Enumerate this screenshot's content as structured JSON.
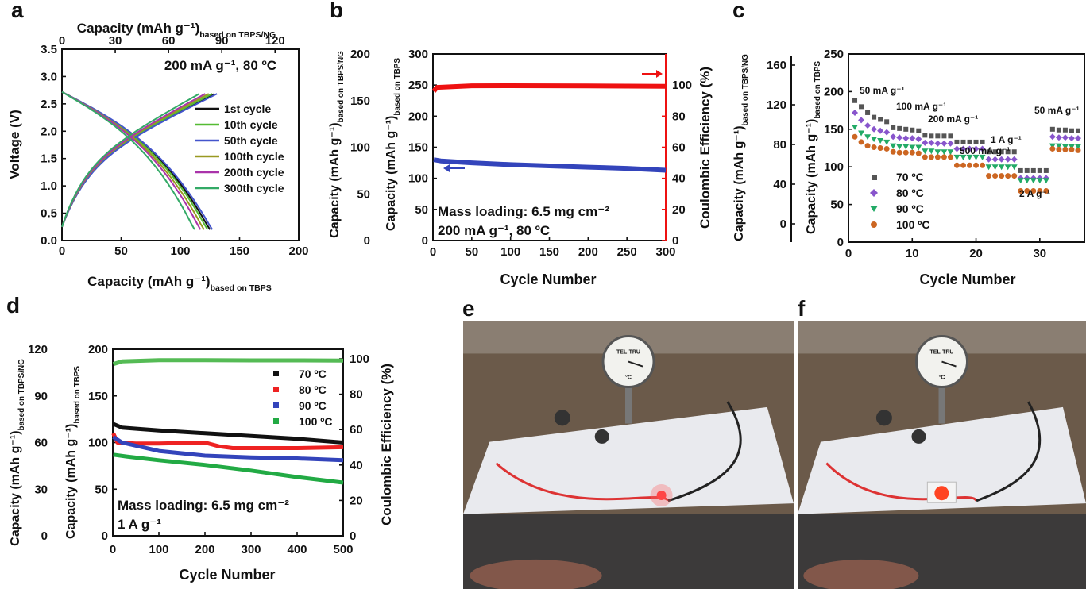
{
  "panels": {
    "a": {
      "letter": "a"
    },
    "b": {
      "letter": "b"
    },
    "c": {
      "letter": "c"
    },
    "d": {
      "letter": "d"
    },
    "e": {
      "letter": "e"
    },
    "f": {
      "letter": "f"
    }
  },
  "chart_data": [
    {
      "id": "a",
      "type": "line",
      "annotation": "200 mA g⁻¹, 80 ºC",
      "xlabel": "Capacity (mAh g⁻¹)",
      "xlabel_sub": "based on TBPS",
      "x2label": "Capacity (mAh g⁻¹)",
      "x2label_sub": "based on TBPS/NG",
      "ylabel": "Voltage (V)",
      "xlim": [
        0,
        200
      ],
      "x2lim": [
        0,
        133.3
      ],
      "ylim": [
        0,
        3.5
      ],
      "xticks": [
        "0",
        "50",
        "100",
        "150",
        "200"
      ],
      "x2ticks": [
        "0",
        "30",
        "60",
        "90",
        "120"
      ],
      "yticks": [
        "0.0",
        "0.5",
        "1.0",
        "1.5",
        "2.0",
        "2.5",
        "3.0",
        "3.5"
      ],
      "legend_position": "center-right",
      "series": [
        {
          "name": "1st cycle",
          "color": "#111111",
          "discharge_end": 125,
          "charge_end": 129
        },
        {
          "name": "10th cycle",
          "color": "#55bb33",
          "discharge_end": 123,
          "charge_end": 127
        },
        {
          "name": "50th cycle",
          "color": "#4455cc",
          "discharge_end": 127,
          "charge_end": 131
        },
        {
          "name": "100th cycle",
          "color": "#999922",
          "discharge_end": 120,
          "charge_end": 124
        },
        {
          "name": "200th cycle",
          "color": "#aa33aa",
          "discharge_end": 117,
          "charge_end": 121
        },
        {
          "name": "300th cycle",
          "color": "#33aa66",
          "discharge_end": 112,
          "charge_end": 116
        }
      ]
    },
    {
      "id": "b",
      "type": "line",
      "xlabel": "Cycle Number",
      "ylabel": "Capacity (mAh g⁻¹)",
      "ylabel_sub": "based on TBPS",
      "ylabel_outer": "Capacity (mAh g⁻¹)",
      "ylabel_outer_sub": "based on TBPS/NG",
      "y2label": "Coulombic Efficiency (%)",
      "xlim": [
        0,
        300
      ],
      "ylim": [
        0,
        300
      ],
      "y2lim": [
        0,
        120
      ],
      "xticks": [
        "0",
        "50",
        "100",
        "150",
        "200",
        "250",
        "300"
      ],
      "yticks": [
        "0",
        "50",
        "100",
        "150",
        "200",
        "250",
        "300"
      ],
      "outer_yticks": [
        "0",
        "50",
        "100",
        "150",
        "200"
      ],
      "y2ticks": [
        "0",
        "20",
        "40",
        "60",
        "80",
        "100"
      ],
      "annotations": [
        "Mass loading: 6.5 mg cm⁻²",
        "200 mA g⁻¹, 80 ºC"
      ],
      "series": [
        {
          "name": "capacity",
          "axis": "left",
          "color": "#3344bb",
          "x": [
            1,
            10,
            50,
            100,
            150,
            200,
            250,
            300
          ],
          "y": [
            130,
            128,
            125,
            122,
            120,
            118,
            116,
            113
          ]
        },
        {
          "name": "coulombic_efficiency",
          "axis": "right",
          "color": "#ee1111",
          "x": [
            1,
            5,
            50,
            100,
            150,
            200,
            250,
            300
          ],
          "y": [
            96,
            98.5,
            99.5,
            99.6,
            99.5,
            99.4,
            99.3,
            99.2
          ]
        }
      ]
    },
    {
      "id": "c",
      "type": "scatter",
      "xlabel": "Cycle Number",
      "ylabel": "Capacity (mAh g⁻¹)",
      "ylabel_sub": "based on TBPS",
      "ylabel_outer": "Capacity (mAh g⁻¹)",
      "ylabel_outer_sub": "based on TBPS/NG",
      "xlim": [
        0,
        37
      ],
      "ylim": [
        0,
        250
      ],
      "xticks": [
        "0",
        "10",
        "20",
        "30"
      ],
      "yticks": [
        "0",
        "50",
        "100",
        "150",
        "200",
        "250"
      ],
      "outer_yticks": [
        "0",
        "40",
        "80",
        "120",
        "160"
      ],
      "rate_labels": [
        "50 mA g⁻¹",
        "100 mA g⁻¹",
        "200 mA g⁻¹",
        "500 mA g⁻¹",
        "1 A g⁻¹",
        "2 A g⁻¹",
        "50 mA g⁻¹"
      ],
      "legend_position": "bottom-left",
      "series": [
        {
          "name": "70 ºC",
          "color": "#555555",
          "marker": "square",
          "y": [
            188,
            180,
            172,
            166,
            163,
            160,
            152,
            151,
            150,
            149,
            148,
            142,
            141,
            141,
            141,
            141,
            133,
            133,
            133,
            133,
            133,
            120,
            120,
            120,
            120,
            120,
            95,
            95,
            95,
            95,
            95,
            150,
            149,
            149,
            148,
            148
          ]
        },
        {
          "name": "80 ºC",
          "color": "#8855cc",
          "marker": "diamond",
          "y": [
            172,
            162,
            155,
            150,
            148,
            146,
            140,
            139,
            138,
            138,
            137,
            132,
            132,
            131,
            131,
            131,
            124,
            124,
            124,
            124,
            124,
            110,
            110,
            110,
            110,
            110,
            85,
            85,
            85,
            85,
            85,
            140,
            139,
            139,
            138,
            138
          ]
        },
        {
          "name": "90 ºC",
          "color": "#22aa66",
          "marker": "triangle-down",
          "y": [
            153,
            145,
            140,
            137,
            135,
            133,
            128,
            127,
            127,
            126,
            126,
            121,
            121,
            120,
            120,
            120,
            113,
            113,
            113,
            113,
            113,
            100,
            100,
            100,
            100,
            100,
            82,
            82,
            82,
            82,
            82,
            128,
            128,
            127,
            127,
            127
          ]
        },
        {
          "name": "100 ºC",
          "color": "#cc6622",
          "marker": "circle",
          "y": [
            140,
            133,
            128,
            126,
            125,
            124,
            120,
            119,
            119,
            119,
            118,
            113,
            113,
            113,
            113,
            113,
            102,
            102,
            102,
            102,
            102,
            88,
            88,
            88,
            88,
            88,
            68,
            68,
            68,
            68,
            68,
            124,
            123,
            123,
            123,
            122
          ]
        }
      ]
    },
    {
      "id": "d",
      "type": "line",
      "xlabel": "Cycle Number",
      "ylabel": "Capacity (mAh g⁻¹)",
      "ylabel_sub": "based on TBPS",
      "ylabel_outer": "Capacity (mAh g⁻¹)",
      "ylabel_outer_sub": "based on TBPS/NG",
      "y2label": "Coulombic Efficiency (%)",
      "xlim": [
        0,
        500
      ],
      "ylim": [
        0,
        200
      ],
      "y2lim": [
        0,
        100
      ],
      "xticks": [
        "0",
        "100",
        "200",
        "300",
        "400",
        "500"
      ],
      "yticks": [
        "0",
        "50",
        "100",
        "150",
        "200"
      ],
      "outer_yticks": [
        "0",
        "30",
        "60",
        "90",
        "120"
      ],
      "y2ticks": [
        "0",
        "20",
        "40",
        "60",
        "80",
        "100"
      ],
      "annotations": [
        "Mass loading: 6.5 mg cm⁻²",
        "1 A g⁻¹"
      ],
      "legend_position": "top-right",
      "series": [
        {
          "name": "70 ºC",
          "color": "#111111",
          "x": [
            1,
            20,
            100,
            200,
            300,
            400,
            500
          ],
          "y": [
            120,
            116,
            113,
            110,
            107,
            104,
            100
          ]
        },
        {
          "name": "80 ºC",
          "color": "#ee2222",
          "x": [
            1,
            10,
            50,
            100,
            200,
            230,
            260,
            300,
            400,
            500
          ],
          "y": [
            110,
            100,
            99,
            99,
            100,
            96,
            94,
            94,
            94,
            95
          ]
        },
        {
          "name": "90 ºC",
          "color": "#3344bb",
          "x": [
            1,
            20,
            100,
            200,
            300,
            400,
            500
          ],
          "y": [
            106,
            100,
            91,
            86,
            84,
            83,
            81
          ]
        },
        {
          "name": "100 ºC",
          "color": "#22aa44",
          "x": [
            1,
            30,
            100,
            200,
            300,
            400,
            500
          ],
          "y": [
            87,
            85,
            81,
            76,
            70,
            63,
            57
          ]
        },
        {
          "name": "ce_all",
          "axis": "right",
          "color": "#55bb55",
          "x": [
            1,
            20,
            100,
            200,
            300,
            400,
            500
          ],
          "y": [
            97,
            98.5,
            99.2,
            99.2,
            99.1,
            99.1,
            99
          ]
        }
      ]
    }
  ],
  "photos": {
    "e": {
      "thermometer_brand": "TEL-TRU",
      "thermometer_unit": "°C"
    },
    "f": {
      "thermometer_brand": "TEL-TRU",
      "thermometer_unit": "°C"
    }
  }
}
